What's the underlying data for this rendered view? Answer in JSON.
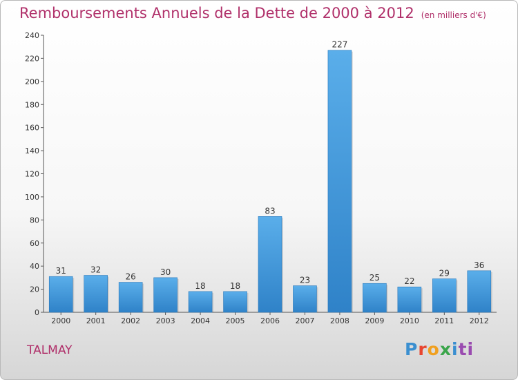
{
  "title": "Remboursements Annuels de la Dette de 2000 à 2012",
  "unit_note": "(en milliers d'€)",
  "town": "TALMAY",
  "logo": {
    "text": "Proxiti",
    "letters": [
      "P",
      "r",
      "o",
      "x",
      "i",
      "ti"
    ]
  },
  "colors": {
    "title": "#b0306a",
    "bar_top": "#5aaeea",
    "bar_bottom": "#2f82c8"
  },
  "chart_data": {
    "type": "bar",
    "categories": [
      "2000",
      "2001",
      "2002",
      "2003",
      "2004",
      "2005",
      "2006",
      "2007",
      "2008",
      "2009",
      "2010",
      "2011",
      "2012"
    ],
    "values": [
      31,
      32,
      26,
      30,
      18,
      18,
      83,
      23,
      227,
      25,
      22,
      29,
      36
    ],
    "ylim": [
      0,
      240
    ],
    "yticks": [
      0,
      20,
      40,
      60,
      80,
      100,
      120,
      140,
      160,
      180,
      200,
      220,
      240
    ],
    "grid": false,
    "data_labels": true
  }
}
